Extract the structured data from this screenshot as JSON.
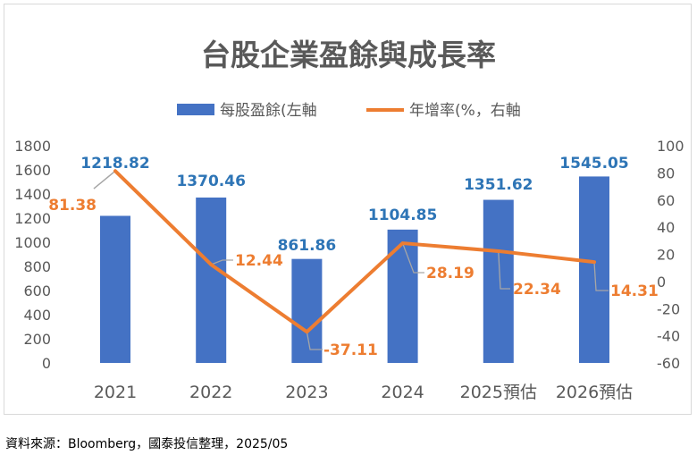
{
  "chart_data": {
    "type": "bar+line",
    "title": "台股企業盈餘與成長率",
    "categories": [
      "2021",
      "2022",
      "2023",
      "2024",
      "2025預估",
      "2026預估"
    ],
    "series": [
      {
        "name": "每股盈餘(左軸",
        "type": "bar",
        "axis": "left",
        "color": "#4472c4",
        "values": [
          1218.82,
          1370.46,
          861.86,
          1104.85,
          1351.62,
          1545.05
        ],
        "labels": [
          "1218.82",
          "1370.46",
          "861.86",
          "1104.85",
          "1351.62",
          "1545.05"
        ]
      },
      {
        "name": "年增率(%，右軸",
        "type": "line",
        "axis": "right",
        "color": "#ed7d31",
        "values": [
          81.38,
          12.44,
          -37.11,
          28.19,
          22.34,
          14.31
        ],
        "labels": [
          "81.38",
          "12.44",
          "-37.11",
          "28.19",
          "22.34",
          "14.31"
        ]
      }
    ],
    "y_left": {
      "min": 0,
      "max": 1800,
      "step": 200,
      "ticks": [
        "0",
        "200",
        "400",
        "600",
        "800",
        "1000",
        "1200",
        "1400",
        "1600",
        "1800"
      ]
    },
    "y_right": {
      "min": -60,
      "max": 100,
      "step": 20,
      "ticks": [
        "-60",
        "-40",
        "-20",
        "0",
        "20",
        "40",
        "60",
        "80",
        "100"
      ]
    },
    "legend_position": "top",
    "grid": false,
    "colors": {
      "bar_label": "#2e75b6",
      "line_label": "#ed7d31",
      "axis_text": "#595959",
      "title": "#595959"
    }
  },
  "source_note": "資料來源：Bloomberg，國泰投信整理，2025/05"
}
